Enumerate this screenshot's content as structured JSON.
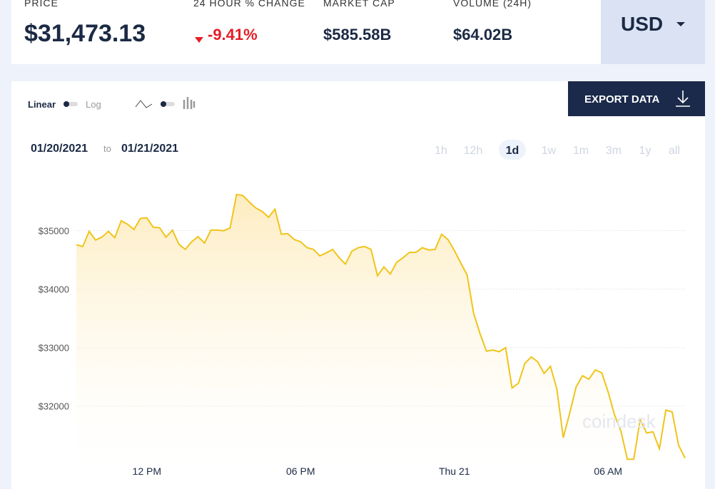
{
  "header": {
    "stats": [
      {
        "label": "PRICE",
        "value": "$31,473.13"
      },
      {
        "label": "24 HOUR % CHANGE",
        "value": "-9.41%"
      },
      {
        "label": "MARKET CAP",
        "value": "$585.58B"
      },
      {
        "label": "VOLUME (24H)",
        "value": "$64.02B"
      }
    ],
    "currency": "USD"
  },
  "controls": {
    "linear": "Linear",
    "log": "Log",
    "export": "EXPORT DATA",
    "date_from": "01/20/2021",
    "date_sep": "to",
    "date_to": "01/21/2021",
    "ranges": [
      "1h",
      "12h",
      "1d",
      "1w",
      "1m",
      "3m",
      "1y",
      "all"
    ],
    "active_range": 2
  },
  "watermark": "coindesk",
  "chart_data": {
    "type": "area-line",
    "color": "#f0c419",
    "x": [
      9.25,
      9.5,
      9.75,
      10,
      10.25,
      10.5,
      10.75,
      11,
      11.25,
      11.5,
      11.75,
      12,
      12.25,
      12.5,
      12.75,
      13,
      13.25,
      13.5,
      13.75,
      14,
      14.25,
      14.5,
      14.75,
      15,
      15.25,
      15.5,
      15.75,
      16,
      16.25,
      16.5,
      16.75,
      17,
      17.25,
      17.5,
      17.75,
      18,
      18.25,
      18.5,
      18.75,
      19,
      19.25,
      19.5,
      19.75,
      20,
      20.25,
      20.5,
      20.75,
      21,
      21.25,
      21.5,
      21.75,
      22,
      22.25,
      22.5,
      22.75,
      23,
      23.25,
      23.5,
      23.75,
      24,
      24.25,
      24.5,
      24.75,
      25,
      25.25,
      25.5,
      25.75,
      26,
      26.25,
      26.5,
      26.75,
      27,
      27.25,
      27.5,
      27.75,
      28,
      28.25,
      28.5,
      28.75,
      29,
      29.25,
      29.5,
      29.75,
      30,
      30.25,
      30.5,
      30.75,
      31,
      31.25,
      31.5,
      31.75,
      32,
      32.25,
      32.5,
      32.75,
      33
    ],
    "values": [
      34760,
      34730,
      34990,
      34840,
      34890,
      34990,
      34880,
      35170,
      35110,
      35020,
      35210,
      35220,
      35060,
      35050,
      34890,
      35010,
      34770,
      34680,
      34810,
      34900,
      34790,
      35010,
      35010,
      35000,
      35050,
      35620,
      35600,
      35490,
      35390,
      35330,
      35230,
      35370,
      34940,
      34950,
      34850,
      34810,
      34710,
      34680,
      34570,
      34620,
      34680,
      34540,
      34430,
      34650,
      34710,
      34730,
      34680,
      34230,
      34380,
      34260,
      34460,
      34540,
      34630,
      34630,
      34710,
      34670,
      34680,
      34940,
      34850,
      34660,
      34450,
      34240,
      33590,
      33240,
      32940,
      32960,
      32930,
      33000,
      32310,
      32390,
      32730,
      32840,
      32760,
      32560,
      32680,
      32290,
      31460,
      31880,
      32330,
      32520,
      32460,
      32620,
      32570,
      32240,
      31850,
      31570,
      31090,
      31090,
      31770,
      31540,
      31560,
      31270,
      31930,
      31900,
      31330,
      31110
    ],
    "xlim": [
      9.25,
      33
    ],
    "xticks": [
      {
        "value": 12,
        "label": "12 PM"
      },
      {
        "value": 18,
        "label": "06 PM"
      },
      {
        "value": 24,
        "label": "Thu 21"
      },
      {
        "value": 30,
        "label": "06 AM"
      }
    ],
    "ylim": [
      30960,
      36020
    ],
    "yticks": [
      {
        "value": 32000,
        "label": "$32000"
      },
      {
        "value": 33000,
        "label": "$33000"
      },
      {
        "value": 34000,
        "label": "$34000"
      },
      {
        "value": 35000,
        "label": "$35000"
      }
    ],
    "grid": true
  }
}
